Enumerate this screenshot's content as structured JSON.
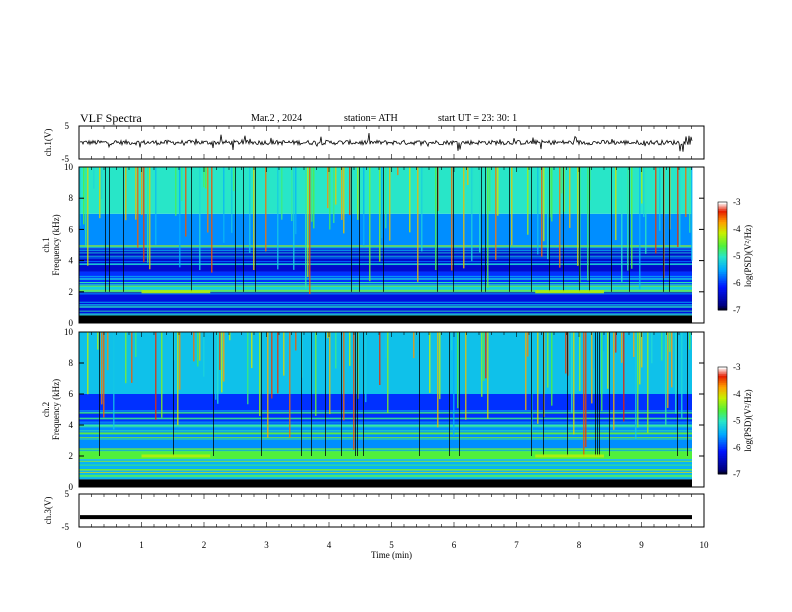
{
  "header": {
    "title": "VLF  Spectra",
    "date": "Mar.2  , 2024",
    "station": "station= ATH",
    "start": "start  UT  =    23: 30: 1"
  },
  "chart_data": [
    {
      "type": "line",
      "panel": "ch1-waveform",
      "ylabel": "ch.1(V)",
      "ylim": [
        -5,
        5
      ],
      "yticks": [
        "5",
        "-5"
      ],
      "note": "time-series waveform, noise around 0 V with sharp spikes"
    },
    {
      "type": "heatmap",
      "panel": "ch1-spectrogram",
      "ylabel": "ch.1\nFrequency  (kHz)",
      "ylim": [
        0,
        10
      ],
      "yticks": [
        "10",
        "8",
        "6",
        "4",
        "2",
        "0"
      ],
      "colorbar": {
        "label": "log(PSD)(V²/Hz)",
        "range": [
          -7,
          -3
        ],
        "ticks": [
          "-3",
          "-4",
          "-5",
          "-6",
          "-7"
        ]
      },
      "bands": [
        {
          "from_khz": 0,
          "to_khz": 0.5,
          "level": -7
        },
        {
          "from_khz": 0.5,
          "to_khz": 2.0,
          "level": -6.3
        },
        {
          "from_khz": 2.0,
          "to_khz": 2.4,
          "level": -5.2
        },
        {
          "from_khz": 2.4,
          "to_khz": 3.3,
          "level": -6.0
        },
        {
          "from_khz": 3.3,
          "to_khz": 4.8,
          "level": -6.4
        },
        {
          "from_khz": 4.8,
          "to_khz": 7.0,
          "level": -5.6
        },
        {
          "from_khz": 7.0,
          "to_khz": 10.0,
          "level": -5.0
        }
      ]
    },
    {
      "type": "heatmap",
      "panel": "ch2-spectrogram",
      "ylabel": "ch.2\nFrequency  (kHz)",
      "ylim": [
        0,
        10
      ],
      "yticks": [
        "10",
        "8",
        "6",
        "4",
        "2",
        "0"
      ],
      "colorbar": {
        "label": "log(PSD)(V²/Hz)",
        "range": [
          -7,
          -3
        ],
        "ticks": [
          "-3",
          "-4",
          "-5",
          "-6",
          "-7"
        ]
      },
      "bands": [
        {
          "from_khz": 0,
          "to_khz": 0.5,
          "level": -7
        },
        {
          "from_khz": 0.5,
          "to_khz": 1.8,
          "level": -5.4
        },
        {
          "from_khz": 1.8,
          "to_khz": 2.3,
          "level": -4.6
        },
        {
          "from_khz": 2.3,
          "to_khz": 4.0,
          "level": -5.6
        },
        {
          "from_khz": 4.0,
          "to_khz": 6.0,
          "level": -6.0
        },
        {
          "from_khz": 6.0,
          "to_khz": 10.0,
          "level": -5.3
        }
      ]
    },
    {
      "type": "line",
      "panel": "ch3-waveform",
      "ylabel": "ch.3(V)",
      "ylim": [
        -5,
        5
      ],
      "yticks": [
        "5",
        "-5"
      ],
      "note": "flat constant line near -2 V"
    }
  ],
  "xaxis": {
    "label": "Time  (min)",
    "range": [
      0,
      10
    ],
    "ticks": [
      "0",
      "1",
      "2",
      "3",
      "4",
      "5",
      "6",
      "7",
      "8",
      "9",
      "10"
    ]
  }
}
